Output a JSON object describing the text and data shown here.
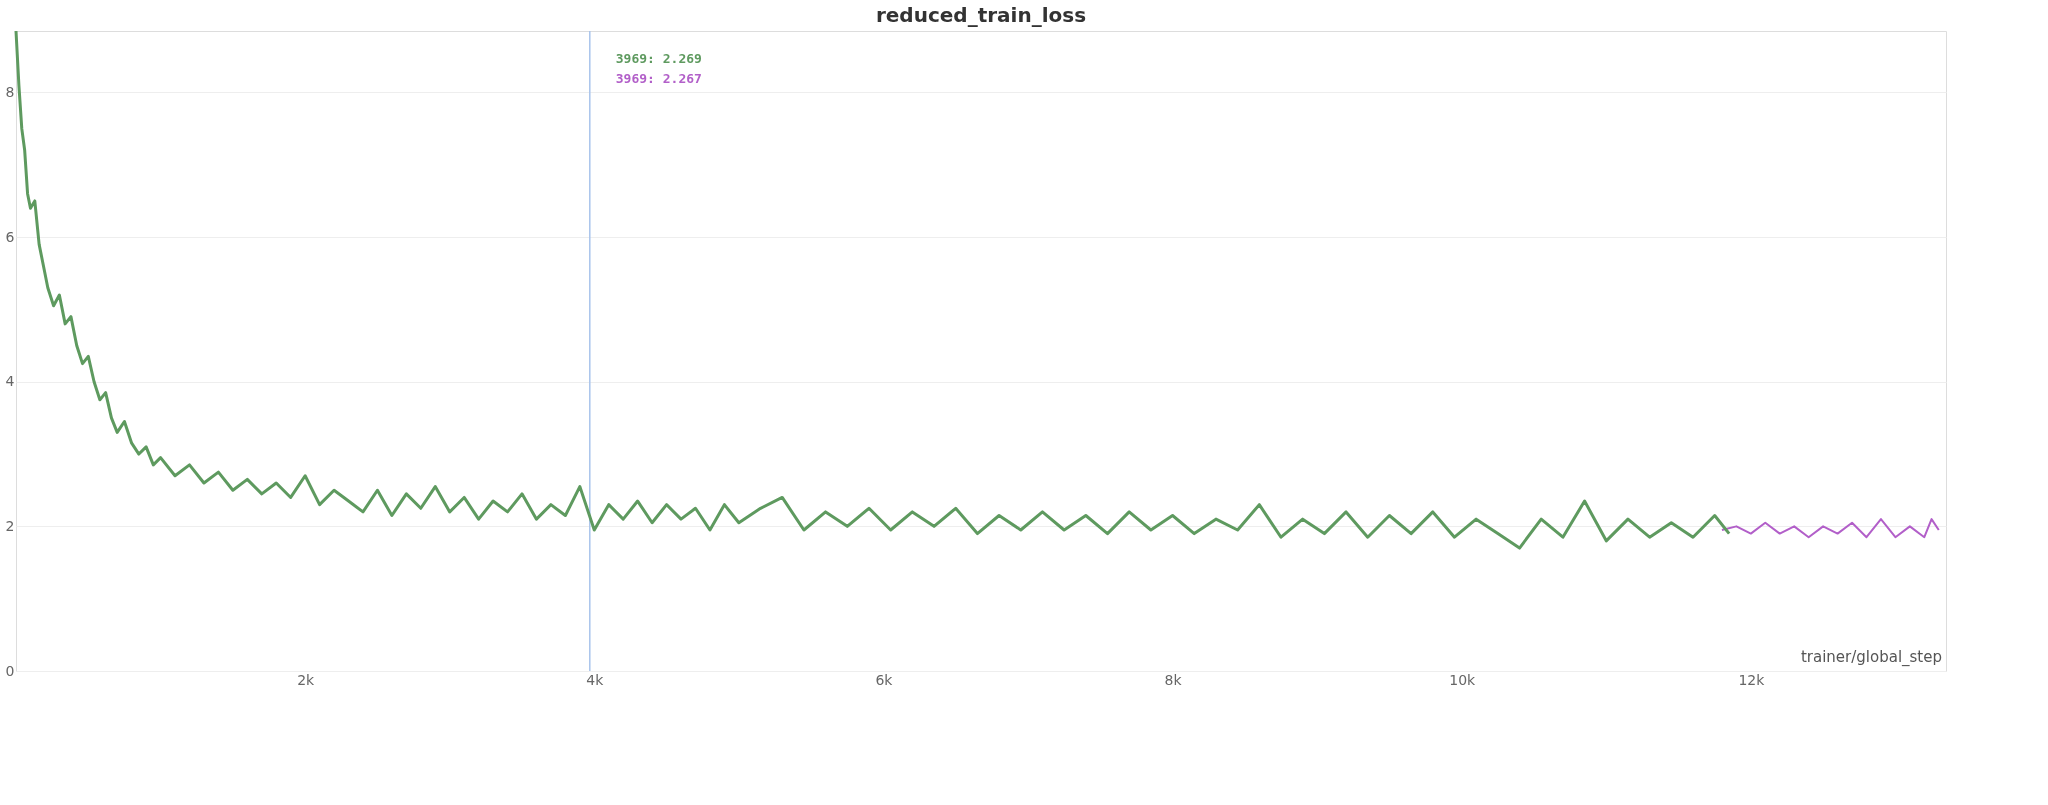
{
  "chart_data": {
    "type": "line",
    "title": "reduced_train_loss",
    "xlabel": "trainer/global_step",
    "xlim": [
      0,
      13350
    ],
    "ylim": [
      0,
      8.85
    ],
    "xticks": [
      {
        "value": 2000,
        "label": "2k"
      },
      {
        "value": 4000,
        "label": "4k"
      },
      {
        "value": 6000,
        "label": "6k"
      },
      {
        "value": 8000,
        "label": "8k"
      },
      {
        "value": 10000,
        "label": "10k"
      },
      {
        "value": 12000,
        "label": "12k"
      }
    ],
    "yticks": [
      0,
      2,
      4,
      6,
      8
    ],
    "grid": "y",
    "line_style": "solid",
    "marker": "none",
    "ref_lines": [
      {
        "axis": "x",
        "value": 3969,
        "color": "#a9c4ec"
      }
    ],
    "annotations": [
      "3969: 2.269",
      "3969: 2.267"
    ],
    "series": [
      {
        "color": "#b25fc9",
        "x": [
          11800,
          11900,
          12000,
          12100,
          12200,
          12300,
          12400,
          12500,
          12600,
          12700,
          12800,
          12900,
          13000,
          13100,
          13200,
          13250,
          13300
        ],
        "values": [
          1.95,
          2.0,
          1.9,
          2.05,
          1.9,
          2.0,
          1.85,
          2.0,
          1.9,
          2.05,
          1.85,
          2.1,
          1.85,
          2.0,
          1.85,
          2.1,
          1.95
        ]
      },
      {
        "color": "#5e9a5f",
        "x": [
          0,
          20,
          40,
          60,
          80,
          100,
          130,
          160,
          190,
          220,
          260,
          300,
          340,
          380,
          420,
          460,
          500,
          540,
          580,
          620,
          660,
          700,
          750,
          800,
          850,
          900,
          950,
          1000,
          1100,
          1200,
          1300,
          1400,
          1500,
          1600,
          1700,
          1800,
          1900,
          2000,
          2100,
          2200,
          2300,
          2400,
          2500,
          2600,
          2700,
          2800,
          2900,
          3000,
          3100,
          3200,
          3300,
          3400,
          3500,
          3600,
          3700,
          3800,
          3900,
          4000,
          4100,
          4200,
          4300,
          4400,
          4500,
          4600,
          4700,
          4800,
          4900,
          5000,
          5150,
          5300,
          5450,
          5600,
          5750,
          5900,
          6050,
          6200,
          6350,
          6500,
          6650,
          6800,
          6950,
          7100,
          7250,
          7400,
          7550,
          7700,
          7850,
          8000,
          8150,
          8300,
          8450,
          8600,
          8750,
          8900,
          9050,
          9200,
          9350,
          9500,
          9650,
          9800,
          9950,
          10100,
          10250,
          10400,
          10550,
          10700,
          10850,
          11000,
          11150,
          11300,
          11450,
          11600,
          11750,
          11850
        ],
        "values": [
          8.85,
          8.1,
          7.5,
          7.2,
          6.6,
          6.4,
          6.5,
          5.9,
          5.6,
          5.3,
          5.05,
          5.2,
          4.8,
          4.9,
          4.5,
          4.25,
          4.35,
          4.0,
          3.75,
          3.85,
          3.5,
          3.3,
          3.45,
          3.15,
          3.0,
          3.1,
          2.85,
          2.95,
          2.7,
          2.85,
          2.6,
          2.75,
          2.5,
          2.65,
          2.45,
          2.6,
          2.4,
          2.7,
          2.3,
          2.5,
          2.35,
          2.2,
          2.5,
          2.15,
          2.45,
          2.25,
          2.55,
          2.2,
          2.4,
          2.1,
          2.35,
          2.2,
          2.45,
          2.1,
          2.3,
          2.15,
          2.55,
          1.95,
          2.3,
          2.1,
          2.35,
          2.05,
          2.3,
          2.1,
          2.25,
          1.95,
          2.3,
          2.05,
          2.25,
          2.4,
          1.95,
          2.2,
          2.0,
          2.25,
          1.95,
          2.2,
          2.0,
          2.25,
          1.9,
          2.15,
          1.95,
          2.2,
          1.95,
          2.15,
          1.9,
          2.2,
          1.95,
          2.15,
          1.9,
          2.1,
          1.95,
          2.3,
          1.85,
          2.1,
          1.9,
          2.2,
          1.85,
          2.15,
          1.9,
          2.2,
          1.85,
          2.1,
          1.9,
          1.7,
          2.1,
          1.85,
          2.35,
          1.8,
          2.1,
          1.85,
          2.05,
          1.85,
          2.15,
          1.9
        ]
      }
    ]
  }
}
